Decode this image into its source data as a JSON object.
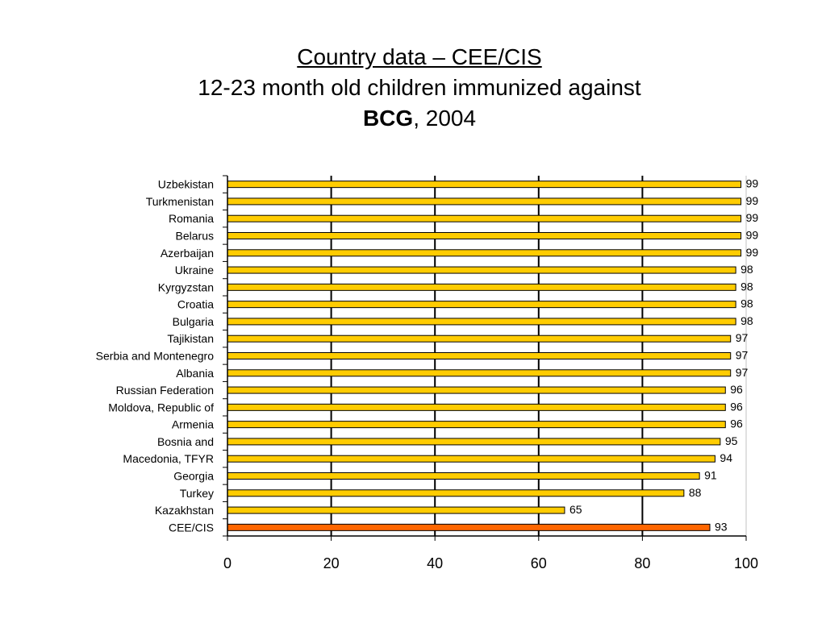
{
  "title": {
    "line1": "Country data – CEE/CIS",
    "line2": "12-23 month old children immunized against",
    "line3_bold": "BCG",
    "line3_rest": ", 2004"
  },
  "colors": {
    "bar_fill": "#FFCC00",
    "bar_highlight_fill": "#FF6600",
    "bar_stroke": "#000000",
    "gridline": "#000000",
    "axis_right_line": "#C0C0C0"
  },
  "chart_data": {
    "type": "bar",
    "orientation": "horizontal",
    "title": "Country data – CEE/CIS 12-23 month old children immunized against BCG, 2004",
    "xlabel": "",
    "ylabel": "",
    "xlim": [
      0,
      100
    ],
    "x_ticks": [
      "0",
      "20",
      "40",
      "60",
      "80",
      "100"
    ],
    "grid": "vertical",
    "legend": "none",
    "categories": [
      "Uzbekistan",
      "Turkmenistan",
      "Romania",
      "Belarus",
      "Azerbaijan",
      "Ukraine",
      "Kyrgyzstan",
      "Croatia",
      "Bulgaria",
      "Tajikistan",
      "Serbia and Montenegro",
      "Albania",
      "Russian Federation",
      "Moldova, Republic of",
      "Armenia",
      "Bosnia and",
      "Macedonia, TFYR",
      "Georgia",
      "Turkey",
      "Kazakhstan",
      "CEE/CIS"
    ],
    "values": [
      99,
      99,
      99,
      99,
      99,
      98,
      98,
      98,
      98,
      97,
      97,
      97,
      96,
      96,
      96,
      95,
      94,
      91,
      88,
      65,
      93
    ],
    "highlighted_category": "CEE/CIS"
  }
}
